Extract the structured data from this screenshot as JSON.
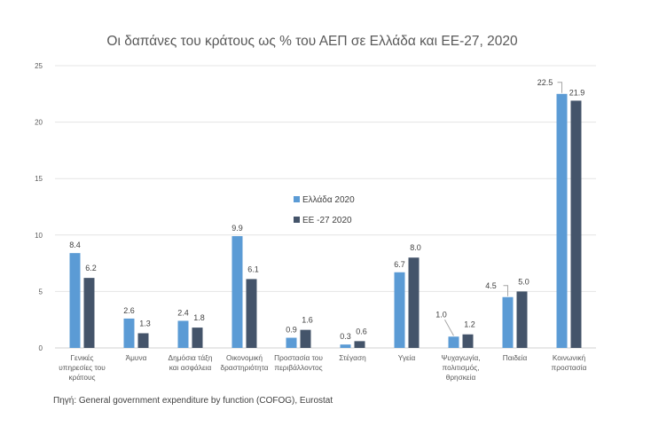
{
  "chart_data": {
    "type": "bar",
    "title": "Οι δαπάνες του κράτους ως % του ΑΕΠ σε Ελλάδα και ΕΕ-27, 2020",
    "xlabel": "",
    "ylabel": "",
    "ylim": [
      0,
      25
    ],
    "yticks": [
      0,
      5,
      10,
      15,
      20,
      25
    ],
    "grid": true,
    "legend_position": "center",
    "categories": [
      [
        "Γενικές",
        "υπηρεσίες του",
        "κράτους"
      ],
      [
        "Άμυνα"
      ],
      [
        "Δημόσια τάξη",
        "και ασφάλεια"
      ],
      [
        "Οικονομική",
        "δραστηριότητα"
      ],
      [
        "Προστασία του",
        "περιβάλλοντος"
      ],
      [
        "Στέγαση"
      ],
      [
        "Υγεία"
      ],
      [
        "Ψυχαγωγία,",
        "πολιτισμός,",
        "θρησκεία"
      ],
      [
        "Παιδεία"
      ],
      [
        "Κοινωνική",
        "προστασία"
      ]
    ],
    "series": [
      {
        "name": "Ελλάδα 2020",
        "color": "#5b9bd5",
        "values": [
          8.4,
          2.6,
          2.4,
          9.9,
          0.9,
          0.3,
          6.7,
          1.0,
          4.5,
          22.5
        ]
      },
      {
        "name": "ΕΕ -27 2020",
        "color": "#44546a",
        "values": [
          6.2,
          1.3,
          1.8,
          6.1,
          1.6,
          0.6,
          8.0,
          1.2,
          5.0,
          21.9
        ]
      }
    ],
    "data_labels": [
      [
        "8.4",
        "2.6",
        "2.4",
        "9.9",
        "0.9",
        "0.3",
        "6.7",
        "1.0",
        "4.5",
        "22.5"
      ],
      [
        "6.2",
        "1.3",
        "1.8",
        "6.1",
        "1.6",
        "0.6",
        "8.0",
        "1.2",
        "5.0",
        "21.9"
      ]
    ]
  },
  "source": "Πηγή: General government expenditure by function (COFOG), Eurostat"
}
